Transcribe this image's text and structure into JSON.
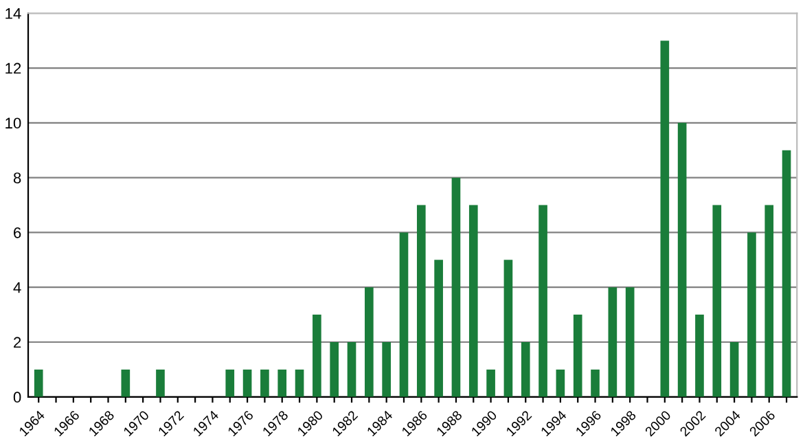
{
  "chart_data": {
    "type": "bar",
    "categories": [
      "1964",
      null,
      "1966",
      null,
      "1968",
      null,
      "1970",
      null,
      "1972",
      null,
      "1974",
      null,
      "1976",
      null,
      "1978",
      null,
      "1980",
      null,
      "1982",
      null,
      "1984",
      null,
      "1986",
      null,
      "1988",
      null,
      "1990",
      null,
      "1992",
      null,
      "1994",
      null,
      "1996",
      null,
      "1998",
      null,
      "2000",
      null,
      "2002",
      null,
      "2004",
      null,
      "2006",
      null
    ],
    "values": [
      1,
      0,
      0,
      0,
      0,
      1,
      0,
      1,
      0,
      0,
      0,
      1,
      1,
      1,
      1,
      1,
      3,
      2,
      2,
      4,
      2,
      6,
      7,
      5,
      8,
      7,
      1,
      5,
      2,
      7,
      1,
      3,
      1,
      4,
      4,
      0,
      13,
      10,
      3,
      7,
      2,
      6,
      7,
      9
    ],
    "color": "#1a7d3a",
    "ylim": [
      0,
      14
    ],
    "yticks": [
      0,
      2,
      4,
      6,
      8,
      10,
      12,
      14
    ],
    "grid": "y",
    "legend": false
  }
}
